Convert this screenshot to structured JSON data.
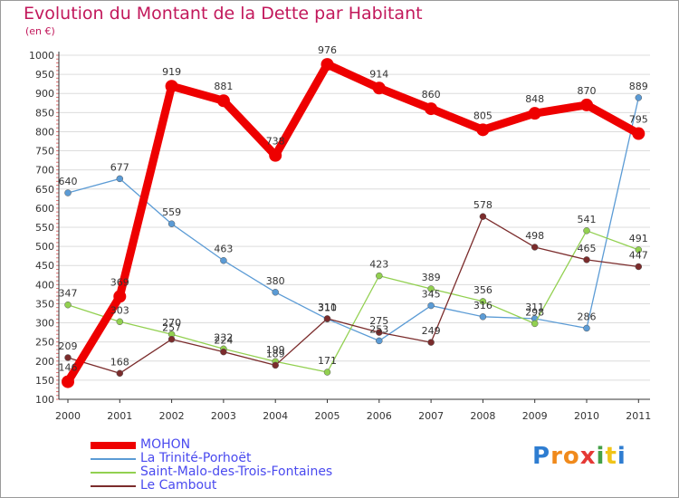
{
  "chart_data": {
    "type": "line",
    "title": "Evolution du Montant de la Dette par Habitant",
    "unit_label": "(en €)",
    "x": [
      2000,
      2001,
      2002,
      2003,
      2004,
      2005,
      2006,
      2007,
      2008,
      2009,
      2010,
      2011
    ],
    "ylim": [
      100,
      1000
    ],
    "yticks": [
      100,
      150,
      200,
      250,
      300,
      350,
      400,
      450,
      500,
      550,
      600,
      650,
      700,
      750,
      800,
      850,
      900,
      950,
      1000
    ],
    "grid": "horizontal",
    "legend_position": "bottom-left",
    "series": [
      {
        "name": "MOHON",
        "color": "#ee0000",
        "values": [
          146,
          369,
          919,
          881,
          738,
          976,
          914,
          860,
          805,
          848,
          870,
          795
        ]
      },
      {
        "name": "La Trinité-Porhoët",
        "color": "#5b9bd5",
        "values": [
          640,
          677,
          559,
          463,
          380,
          310,
          253,
          345,
          316,
          311,
          286,
          889
        ]
      },
      {
        "name": "Saint-Malo-des-Trois-Fontaines",
        "color": "#92d050",
        "values": [
          347,
          303,
          270,
          232,
          199,
          171,
          423,
          389,
          356,
          298,
          541,
          491
        ]
      },
      {
        "name": "Le Cambout",
        "color": "#7b2c2c",
        "values": [
          209,
          168,
          257,
          224,
          189,
          311,
          275,
          249,
          578,
          498,
          465,
          447
        ]
      }
    ]
  },
  "logo": {
    "letters": [
      "P",
      "r",
      "o",
      "x",
      "i",
      "t",
      "i"
    ],
    "colors": [
      "#2e7dd1",
      "#f08a1c",
      "#f08a1c",
      "#e53935",
      "#43a047",
      "#f0c419",
      "#2e7dd1"
    ]
  }
}
